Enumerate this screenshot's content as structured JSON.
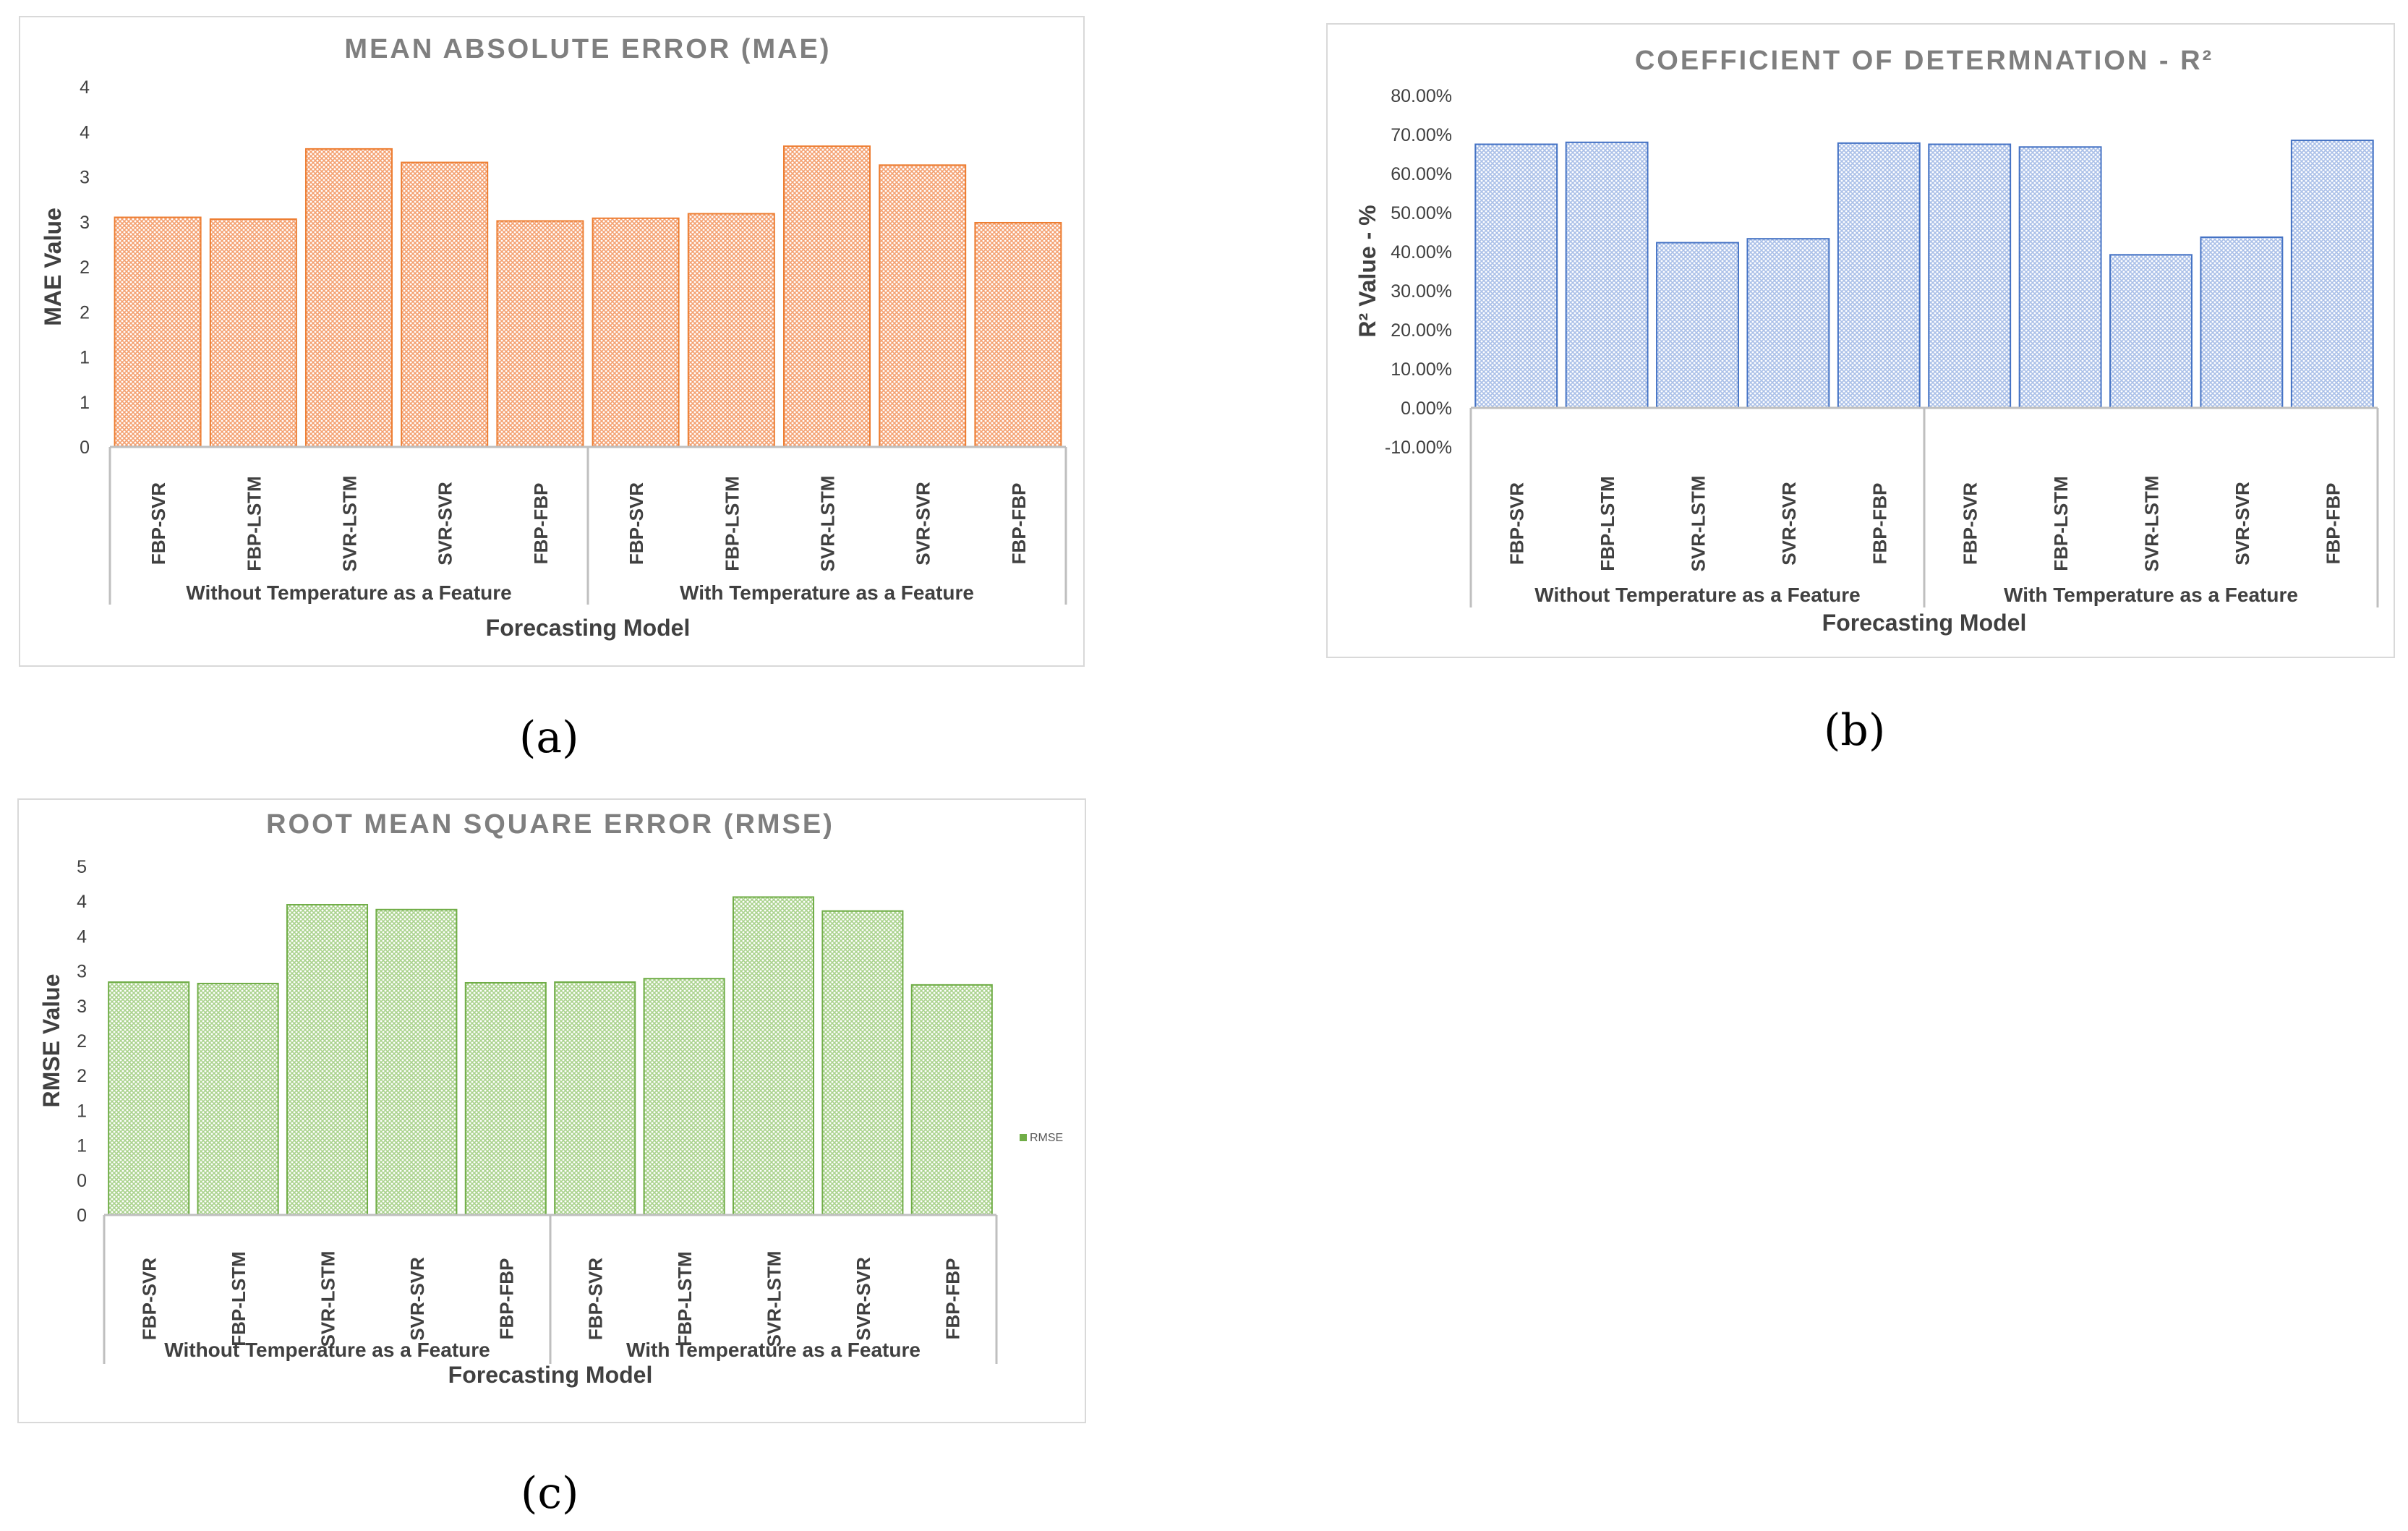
{
  "chart_data": [
    {
      "id": "mae",
      "type": "bar",
      "title": "MEAN ABSOLUTE ERROR (MAE)",
      "ylabel": "MAE Value",
      "xlabel": "Forecasting Model",
      "sublabel": "(a)",
      "color": "#f4a070",
      "stroke": "#ed7d31",
      "ylim": [
        0,
        4
      ],
      "ytick_labels": [
        "0",
        "1",
        "1",
        "2",
        "2",
        "3",
        "3",
        "4",
        "4"
      ],
      "categories": [
        "FBP-SVR",
        "FBP-LSTM",
        "SVR-LSTM",
        "SVR-SVR",
        "FBP-FBP",
        "FBP-SVR",
        "FBP-LSTM",
        "SVR-LSTM",
        "SVR-SVR",
        "FBP-FBP"
      ],
      "groups": [
        "Without Temperature as a Feature",
        "With Temperature as a Feature"
      ],
      "values": [
        2.55,
        2.53,
        3.31,
        3.16,
        2.51,
        2.54,
        2.59,
        3.34,
        3.13,
        2.49
      ],
      "legend": null
    },
    {
      "id": "r2",
      "type": "bar",
      "title": "COEFFICIENT OF DETERMNATION - R²",
      "ylabel": "R² Value - %",
      "xlabel": "Forecasting Model",
      "sublabel": "(b)",
      "color": "#a9bfe8",
      "stroke": "#4472c4",
      "ylim": [
        -10,
        80
      ],
      "ytick_labels": [
        "-10.00%",
        "0.00%",
        "10.00%",
        "20.00%",
        "30.00%",
        "40.00%",
        "50.00%",
        "60.00%",
        "70.00%",
        "80.00%"
      ],
      "categories": [
        "FBP-SVR",
        "FBP-LSTM",
        "SVR-LSTM",
        "SVR-SVR",
        "FBP-FBP",
        "FBP-SVR",
        "FBP-LSTM",
        "SVR-LSTM",
        "SVR-SVR",
        "FBP-FBP"
      ],
      "groups": [
        "Without Temperature as a Feature",
        "With Temperature as a Feature"
      ],
      "values": [
        67.5,
        68.0,
        42.3,
        43.3,
        67.8,
        67.5,
        66.8,
        39.2,
        43.7,
        68.5
      ],
      "legend": null
    },
    {
      "id": "rmse",
      "type": "bar",
      "title": "ROOT MEAN SQUARE ERROR (RMSE)",
      "ylabel": "RMSE Value",
      "xlabel": "Forecasting Model",
      "sublabel": "(c)",
      "color": "#a9d28c",
      "stroke": "#70ad47",
      "ylim": [
        0,
        5
      ],
      "ytick_labels": [
        "0",
        "0",
        "1",
        "1",
        "2",
        "2",
        "3",
        "3",
        "4",
        "4",
        "5"
      ],
      "categories": [
        "FBP-SVR",
        "FBP-LSTM",
        "SVR-LSTM",
        "SVR-SVR",
        "FBP-FBP",
        "FBP-SVR",
        "FBP-LSTM",
        "SVR-LSTM",
        "SVR-SVR",
        "FBP-FBP"
      ],
      "groups": [
        "Without Temperature as a Feature",
        "With Temperature as a Feature"
      ],
      "values": [
        3.34,
        3.32,
        4.45,
        4.38,
        3.33,
        3.34,
        3.39,
        4.56,
        4.36,
        3.3
      ],
      "legend": "RMSE"
    }
  ]
}
